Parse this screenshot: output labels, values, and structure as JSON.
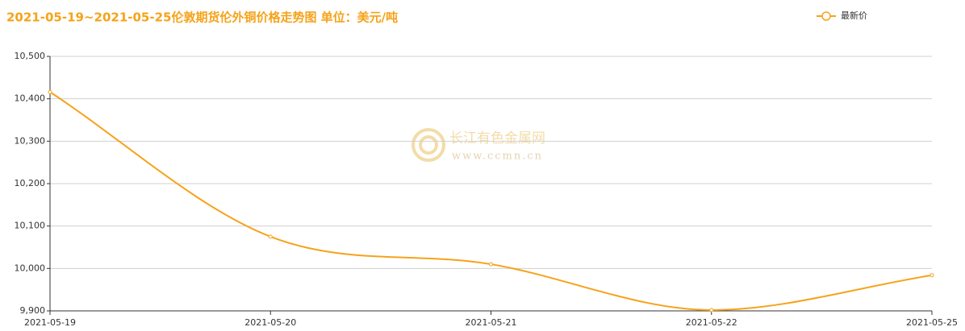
{
  "chart_data": {
    "type": "line",
    "title": "2021-05-19~2021-05-25伦敦期货伦外铜价格走势图 单位：美元/吨",
    "watermark": {
      "name": "长江有色金属网",
      "url": "www.ccmn.cn"
    },
    "categories": [
      "2021-05-19",
      "2021-05-20",
      "2021-05-21",
      "2021-05-22",
      "2021-05-25"
    ],
    "series": [
      {
        "name": "最新价",
        "color": "#f7a21b",
        "values": [
          10416,
          10075,
          10010,
          9902,
          9984
        ]
      }
    ],
    "ylim": [
      9900,
      10500
    ],
    "yticks": [
      {
        "value": 9900,
        "label": "9,900"
      },
      {
        "value": 10000,
        "label": "10,000"
      },
      {
        "value": 10100,
        "label": "10,100"
      },
      {
        "value": 10200,
        "label": "10,200"
      },
      {
        "value": 10300,
        "label": "10,300"
      },
      {
        "value": 10400,
        "label": "10,400"
      },
      {
        "value": 10500,
        "label": "10,500"
      }
    ],
    "grid": true,
    "legend": "top-right"
  }
}
